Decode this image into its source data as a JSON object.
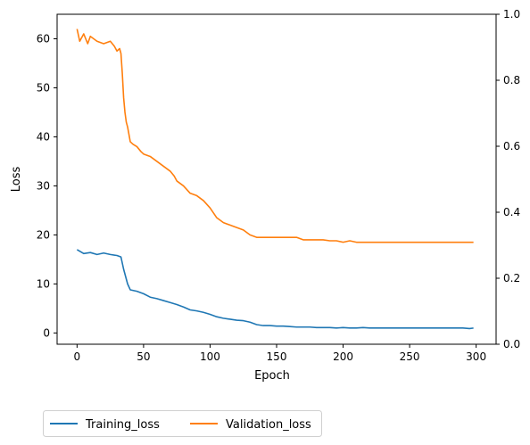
{
  "chart_data": {
    "type": "line",
    "xlabel": "Epoch",
    "ylabel": "Loss",
    "xlim": [
      -15,
      315
    ],
    "ylim": [
      -2.3,
      65
    ],
    "y2lim": [
      0,
      1
    ],
    "x_ticks": [
      0,
      50,
      100,
      150,
      200,
      250,
      300
    ],
    "y_ticks": [
      0,
      10,
      20,
      30,
      40,
      50,
      60
    ],
    "y2_ticks": [
      0.0,
      0.2,
      0.4,
      0.6,
      0.8,
      1.0
    ],
    "x_tick_labels": [
      "0",
      "50",
      "100",
      "150",
      "200",
      "250",
      "300"
    ],
    "y_tick_labels": [
      "0",
      "10",
      "20",
      "30",
      "40",
      "50",
      "60"
    ],
    "y2_tick_labels": [
      "0.0",
      "0.2",
      "0.4",
      "0.6",
      "0.8",
      "1.0"
    ],
    "legend_position": "below-left",
    "grid": false,
    "series": [
      {
        "name": "Training_loss",
        "color": "#1f77b4",
        "x": [
          0,
          5,
          10,
          15,
          20,
          25,
          30,
          33,
          35,
          38,
          40,
          45,
          50,
          55,
          60,
          65,
          70,
          75,
          80,
          85,
          90,
          95,
          100,
          105,
          110,
          115,
          120,
          125,
          130,
          135,
          140,
          145,
          150,
          155,
          160,
          165,
          170,
          175,
          180,
          185,
          190,
          195,
          200,
          205,
          210,
          215,
          220,
          225,
          230,
          235,
          240,
          245,
          250,
          255,
          260,
          265,
          270,
          275,
          280,
          285,
          290,
          295,
          298
        ],
        "y": [
          17,
          16.2,
          16.4,
          16,
          16.3,
          16,
          15.8,
          15.5,
          13,
          10,
          8.8,
          8.5,
          8,
          7.3,
          7,
          6.6,
          6.2,
          5.8,
          5.3,
          4.7,
          4.5,
          4.2,
          3.8,
          3.3,
          3,
          2.8,
          2.6,
          2.5,
          2.2,
          1.7,
          1.5,
          1.5,
          1.4,
          1.4,
          1.3,
          1.2,
          1.2,
          1.2,
          1.1,
          1.1,
          1.1,
          1,
          1.1,
          1,
          1,
          1.1,
          1,
          1,
          1,
          1,
          1,
          1,
          1,
          1,
          1,
          1,
          1,
          1,
          1,
          1,
          1,
          0.9,
          1
        ]
      },
      {
        "name": "Validation_loss",
        "color": "#ff7f0e",
        "x": [
          0,
          2,
          5,
          8,
          10,
          15,
          20,
          25,
          28,
          30,
          32,
          33,
          34,
          35,
          36,
          37,
          38,
          40,
          42,
          45,
          48,
          50,
          55,
          60,
          65,
          70,
          73,
          75,
          80,
          85,
          90,
          95,
          100,
          105,
          110,
          115,
          120,
          125,
          130,
          135,
          140,
          145,
          150,
          155,
          160,
          165,
          170,
          175,
          180,
          185,
          190,
          195,
          200,
          205,
          210,
          215,
          220,
          225,
          230,
          235,
          240,
          245,
          250,
          255,
          260,
          265,
          270,
          275,
          280,
          285,
          290,
          295,
          298
        ],
        "y": [
          62,
          59.5,
          61,
          59,
          60.5,
          59.5,
          59,
          59.5,
          58.5,
          57.5,
          58,
          57,
          53,
          48,
          45,
          43,
          42,
          39,
          38.5,
          38,
          37,
          36.5,
          36,
          35,
          34,
          33,
          32,
          31,
          30,
          28.5,
          28,
          27,
          25.5,
          23.5,
          22.5,
          22,
          21.5,
          21,
          20,
          19.5,
          19.5,
          19.5,
          19.5,
          19.5,
          19.5,
          19.5,
          19,
          19,
          19,
          19,
          18.8,
          18.8,
          18.5,
          18.8,
          18.5,
          18.5,
          18.5,
          18.5,
          18.5,
          18.5,
          18.5,
          18.5,
          18.5,
          18.5,
          18.5,
          18.5,
          18.5,
          18.5,
          18.5,
          18.5,
          18.5,
          18.5,
          18.5
        ]
      }
    ]
  }
}
